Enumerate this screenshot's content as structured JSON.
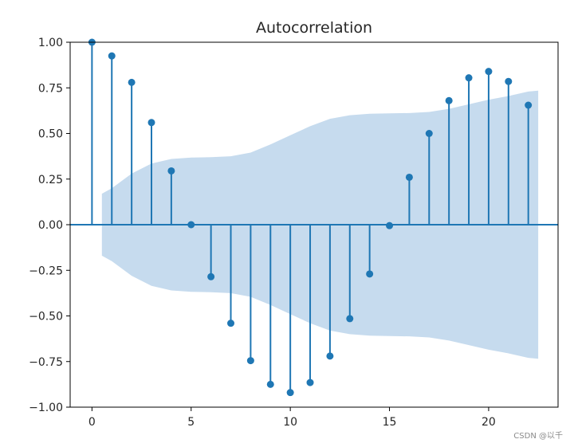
{
  "chart_data": {
    "type": "stem",
    "title": "Autocorrelation",
    "xlabel": "",
    "ylabel": "",
    "xlim": [
      -1.1,
      23.5
    ],
    "ylim": [
      -1.0,
      1.0
    ],
    "x_ticks": [
      0,
      5,
      10,
      15,
      20
    ],
    "y_ticks": [
      1.0,
      0.75,
      0.5,
      0.25,
      0.0,
      -0.25,
      -0.5,
      -0.75,
      -1.0
    ],
    "x_tick_labels": [
      "0",
      "5",
      "10",
      "15",
      "20"
    ],
    "y_tick_labels": [
      "1.00",
      "0.75",
      "0.50",
      "0.25",
      "0.00",
      "−0.25",
      "−0.50",
      "−0.75",
      "−1.00"
    ],
    "lags": [
      0,
      1,
      2,
      3,
      4,
      5,
      6,
      7,
      8,
      9,
      10,
      11,
      12,
      13,
      14,
      15,
      16,
      17,
      18,
      19,
      20,
      21,
      22
    ],
    "acf": [
      1.0,
      0.925,
      0.78,
      0.56,
      0.295,
      0.0,
      -0.285,
      -0.54,
      -0.745,
      -0.875,
      -0.92,
      -0.865,
      -0.72,
      -0.515,
      -0.27,
      -0.005,
      0.26,
      0.5,
      0.68,
      0.805,
      0.84,
      0.785,
      0.655
    ],
    "confidence_band": {
      "x": [
        0.5,
        1,
        2,
        3,
        4,
        5,
        6,
        7,
        8,
        9,
        10,
        11,
        12,
        13,
        14,
        15,
        16,
        17,
        18,
        19,
        20,
        21,
        22,
        22.5
      ],
      "upper": [
        0.17,
        0.2,
        0.28,
        0.335,
        0.36,
        0.368,
        0.37,
        0.375,
        0.395,
        0.44,
        0.49,
        0.54,
        0.58,
        0.6,
        0.608,
        0.61,
        0.612,
        0.618,
        0.635,
        0.66,
        0.685,
        0.705,
        0.73,
        0.735
      ],
      "lower": [
        -0.17,
        -0.2,
        -0.28,
        -0.335,
        -0.36,
        -0.368,
        -0.37,
        -0.375,
        -0.395,
        -0.44,
        -0.49,
        -0.54,
        -0.58,
        -0.6,
        -0.608,
        -0.61,
        -0.612,
        -0.618,
        -0.635,
        -0.66,
        -0.685,
        -0.705,
        -0.73,
        -0.735
      ]
    },
    "colors": {
      "stem": "#1f77b4",
      "band": "#c6dbee",
      "axis": "#000000",
      "text": "#262626"
    },
    "grid": false,
    "legend": "none"
  },
  "watermark": "CSDN @以千"
}
